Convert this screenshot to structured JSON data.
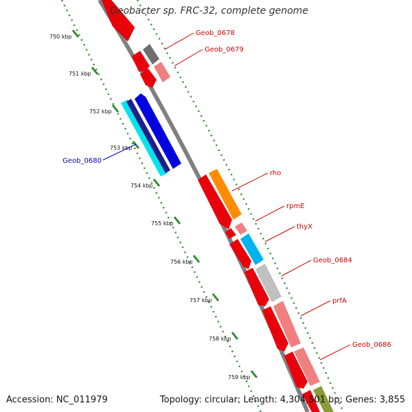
{
  "title": "Geobacter sp. FRC-32, complete genome",
  "footer": {
    "accession": "Accession: NC_011979",
    "summary": "Topology: circular; Length: 4,304,501 bp; Genes: 3,855"
  },
  "colors": {
    "backbone": "#808080",
    "tick": "#2e8b2e",
    "forward_label": "#cc0000",
    "reverse_label": "#0000aa"
  },
  "scale_labels": [
    "750 kbp",
    "751 kbp",
    "752 kbp",
    "753 kbp",
    "754 kbp",
    "755 kbp",
    "756 kbp",
    "757 kbp",
    "758 kbp",
    "759 kbp"
  ],
  "gene_labels": [
    {
      "text": "Geob_0678",
      "color": "#cc0000"
    },
    {
      "text": "Geob_0679",
      "color": "#cc0000"
    },
    {
      "text": "Geob_0680",
      "color": "#0000aa"
    },
    {
      "text": "rho",
      "color": "#cc0000"
    },
    {
      "text": "rpmE",
      "color": "#cc0000"
    },
    {
      "text": "thyX",
      "color": "#cc0000"
    },
    {
      "text": "Geob_0684",
      "color": "#cc0000"
    },
    {
      "text": "prfA",
      "color": "#cc0000"
    },
    {
      "text": "Geob_0686",
      "color": "#cc0000"
    }
  ]
}
